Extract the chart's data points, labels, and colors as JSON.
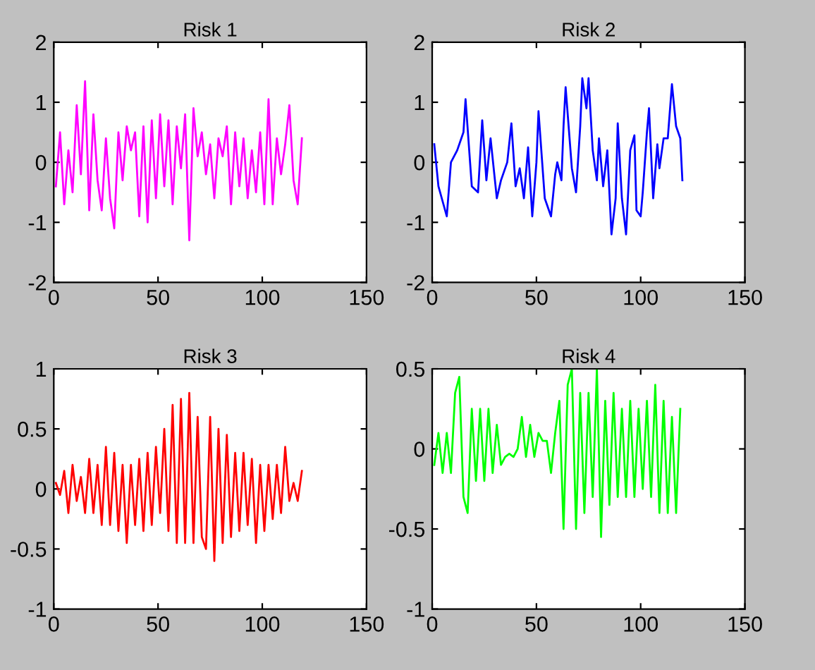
{
  "chart_data": [
    {
      "type": "line",
      "title": "Risk 1",
      "xlim": [
        0,
        150
      ],
      "ylim": [
        -2,
        2
      ],
      "xticks": [
        0,
        50,
        100,
        150
      ],
      "yticks": [
        -2,
        -1,
        0,
        1,
        2
      ],
      "grid": false,
      "x": [
        1,
        3,
        5,
        7,
        9,
        11,
        13,
        15,
        17,
        19,
        21,
        23,
        25,
        27,
        29,
        31,
        33,
        35,
        37,
        39,
        41,
        43,
        45,
        47,
        49,
        51,
        53,
        55,
        57,
        59,
        61,
        63,
        65,
        67,
        69,
        71,
        73,
        75,
        77,
        79,
        81,
        83,
        85,
        87,
        89,
        91,
        93,
        95,
        97,
        99,
        101,
        103,
        105,
        107,
        109,
        111,
        113,
        115,
        117,
        119
      ],
      "series": [
        {
          "color": "#ff00ff",
          "values": [
            -0.4,
            0.5,
            -0.7,
            0.2,
            -0.5,
            0.95,
            -0.2,
            1.35,
            -0.8,
            0.8,
            -0.3,
            -0.8,
            0.4,
            -0.6,
            -1.1,
            0.5,
            -0.3,
            0.6,
            0.2,
            0.5,
            -0.9,
            0.6,
            -1.0,
            0.7,
            -0.6,
            0.8,
            -0.4,
            0.7,
            -0.7,
            0.6,
            -0.1,
            0.8,
            -1.3,
            0.9,
            0.1,
            0.5,
            -0.2,
            0.3,
            -0.6,
            0.4,
            0.1,
            0.6,
            -0.7,
            0.5,
            -0.4,
            0.4,
            -0.6,
            0.2,
            -0.5,
            0.5,
            -0.7,
            1.05,
            -0.7,
            0.4,
            -0.2,
            0.3,
            0.95,
            -0.3,
            -0.7,
            0.4
          ]
        }
      ]
    },
    {
      "type": "line",
      "title": "Risk 2",
      "xlim": [
        0,
        150
      ],
      "ylim": [
        -2,
        2
      ],
      "xticks": [
        0,
        50,
        100,
        150
      ],
      "yticks": [
        -2,
        -1,
        0,
        1,
        2
      ],
      "grid": false,
      "x": [
        1,
        3,
        7,
        9,
        12,
        15,
        16,
        19,
        22,
        24,
        26,
        28,
        31,
        33,
        36,
        38,
        40,
        42,
        44,
        46,
        48,
        50,
        51,
        54,
        57,
        59,
        60,
        62,
        63,
        64,
        67,
        69,
        71,
        72,
        74,
        75,
        77,
        79,
        80,
        82,
        84,
        86,
        88,
        89,
        91,
        93,
        95,
        97,
        98,
        100,
        101,
        103,
        104,
        106,
        108,
        109,
        111,
        113,
        115,
        117,
        119,
        120
      ],
      "series": [
        {
          "color": "#0000ff",
          "values": [
            0.3,
            -0.4,
            -0.9,
            0,
            0.2,
            0.5,
            1.05,
            -0.4,
            -0.5,
            0.7,
            -0.3,
            0.4,
            -0.6,
            -0.3,
            0.0,
            0.65,
            -0.4,
            -0.1,
            -0.6,
            0.25,
            -0.9,
            0.0,
            0.85,
            -0.6,
            -0.9,
            -0.2,
            0.0,
            -0.3,
            0.6,
            1.25,
            -0.1,
            -0.5,
            0.6,
            1.4,
            0.9,
            1.4,
            0.2,
            -0.3,
            0.4,
            -0.4,
            0.2,
            -1.2,
            -0.6,
            0.65,
            -0.6,
            -1.2,
            0.2,
            0.45,
            -0.8,
            -0.9,
            -0.5,
            0.5,
            0.9,
            -0.6,
            0.3,
            -0.1,
            0.4,
            0.4,
            1.3,
            0.6,
            0.4,
            -0.3
          ]
        }
      ]
    },
    {
      "type": "line",
      "title": "Risk 3",
      "xlim": [
        0,
        150
      ],
      "ylim": [
        -1,
        1
      ],
      "xticks": [
        0,
        50,
        100,
        150
      ],
      "yticks": [
        -1,
        -0.5,
        0,
        0.5,
        1
      ],
      "grid": false,
      "x": [
        1,
        3,
        5,
        7,
        9,
        11,
        13,
        15,
        17,
        19,
        21,
        23,
        25,
        27,
        29,
        31,
        33,
        35,
        37,
        39,
        41,
        43,
        45,
        47,
        49,
        51,
        53,
        55,
        57,
        59,
        61,
        63,
        65,
        67,
        69,
        71,
        73,
        75,
        77,
        79,
        81,
        83,
        85,
        87,
        89,
        91,
        93,
        95,
        97,
        99,
        101,
        103,
        105,
        107,
        109,
        111,
        113,
        115,
        117,
        119
      ],
      "series": [
        {
          "color": "#ff0000",
          "values": [
            0.05,
            -0.05,
            0.15,
            -0.2,
            0.2,
            -0.1,
            0.1,
            -0.2,
            0.25,
            -0.2,
            0.2,
            -0.3,
            0.35,
            -0.3,
            0.3,
            -0.35,
            0.2,
            -0.45,
            0.2,
            -0.3,
            0.25,
            -0.35,
            0.3,
            -0.3,
            0.35,
            -0.2,
            0.5,
            -0.35,
            0.7,
            -0.45,
            0.75,
            -0.45,
            0.8,
            -0.45,
            0.6,
            -0.4,
            -0.5,
            0.6,
            -0.6,
            0.5,
            -0.45,
            0.45,
            -0.4,
            0.3,
            -0.35,
            0.3,
            -0.3,
            0.25,
            -0.45,
            0.2,
            -0.35,
            0.2,
            -0.25,
            0.2,
            -0.2,
            0.35,
            -0.1,
            0.05,
            -0.1,
            0.15
          ]
        }
      ]
    },
    {
      "type": "line",
      "title": "Risk 4",
      "xlim": [
        0,
        150
      ],
      "ylim": [
        -1,
        0.5
      ],
      "xticks": [
        0,
        50,
        100,
        150
      ],
      "yticks": [
        -1,
        -0.5,
        0,
        0.5
      ],
      "grid": false,
      "x": [
        1,
        3,
        5,
        7,
        9,
        11,
        13,
        15,
        17,
        19,
        21,
        23,
        25,
        27,
        29,
        31,
        33,
        35,
        37,
        39,
        41,
        43,
        45,
        47,
        49,
        51,
        53,
        55,
        57,
        59,
        61,
        63,
        65,
        67,
        69,
        71,
        73,
        75,
        77,
        79,
        81,
        83,
        85,
        87,
        89,
        91,
        93,
        95,
        97,
        99,
        101,
        103,
        105,
        107,
        109,
        111,
        113,
        115,
        117,
        119
      ],
      "series": [
        {
          "color": "#00ff00",
          "values": [
            -0.1,
            0.1,
            -0.15,
            0.1,
            -0.15,
            0.35,
            0.45,
            -0.3,
            -0.4,
            0.25,
            -0.2,
            0.25,
            -0.2,
            0.25,
            -0.15,
            0.15,
            -0.1,
            -0.05,
            -0.03,
            -0.05,
            0.0,
            0.2,
            -0.05,
            0.15,
            -0.05,
            0.1,
            0.05,
            0.05,
            -0.15,
            0.1,
            0.3,
            -0.5,
            0.4,
            0.5,
            -0.5,
            0.35,
            -0.4,
            0.35,
            -0.3,
            0.5,
            -0.55,
            0.3,
            -0.35,
            0.35,
            -0.3,
            0.25,
            -0.3,
            0.3,
            -0.3,
            0.25,
            -0.25,
            0.3,
            -0.3,
            0.4,
            -0.4,
            0.3,
            -0.4,
            0.2,
            -0.4,
            0.25
          ]
        }
      ]
    }
  ]
}
